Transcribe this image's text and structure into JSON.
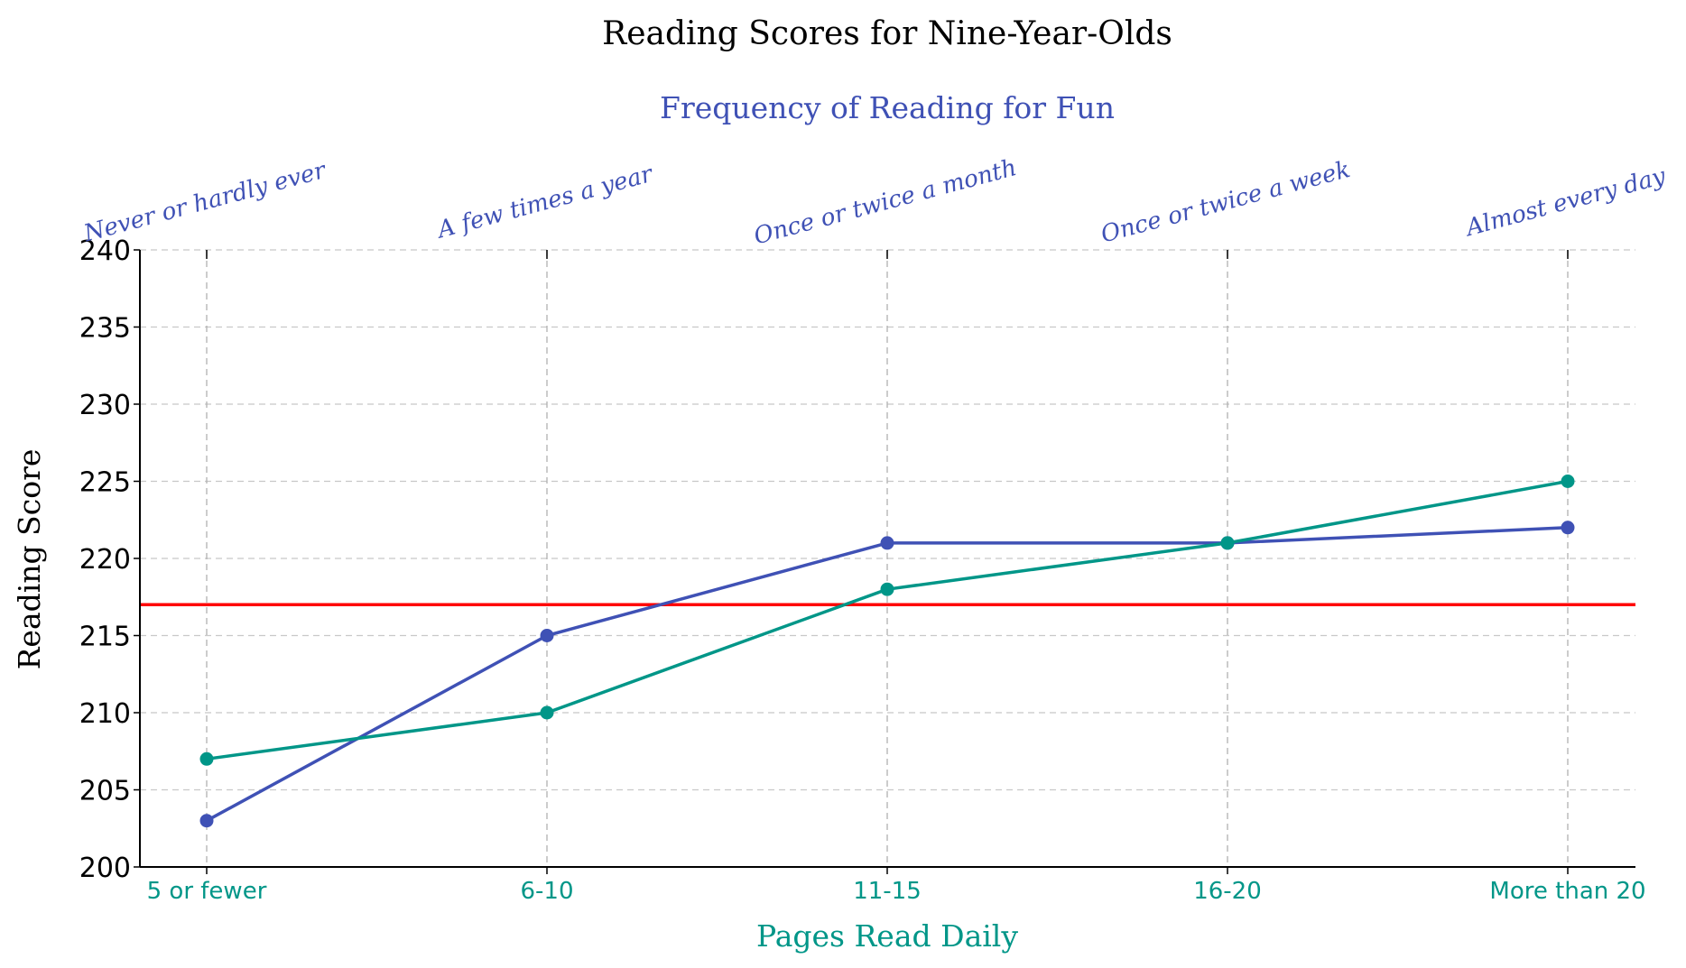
{
  "chart_data": {
    "type": "line",
    "title": "Reading Scores for Nine-Year-Olds",
    "xlabel": "Pages Read Daily",
    "ylabel": "Reading Score",
    "top_axis_label": "Frequency of Reading for Fun",
    "categories": [
      "5 or fewer",
      "6-10",
      "11-15",
      "16-20",
      "More than 20"
    ],
    "top_categories": [
      "Never or hardly ever",
      "A few times a year",
      "Once or twice a month",
      "Once or twice a week",
      "Almost every day"
    ],
    "series": [
      {
        "values": [
          203,
          215,
          221,
          221,
          222
        ],
        "color": "#3f51b5"
      },
      {
        "values": [
          207,
          210,
          218,
          221,
          225
        ],
        "color": "#009688"
      }
    ],
    "reference_line": {
      "y": 217,
      "color": "#ff0000"
    },
    "ylim": [
      200,
      240
    ],
    "yticks": [
      200,
      205,
      210,
      215,
      220,
      225,
      230,
      235,
      240
    ],
    "grid": true,
    "colors": {
      "top_axis": "#3f51b5",
      "bottom_axis": "#009688",
      "grid": "#c8c8c8"
    }
  }
}
